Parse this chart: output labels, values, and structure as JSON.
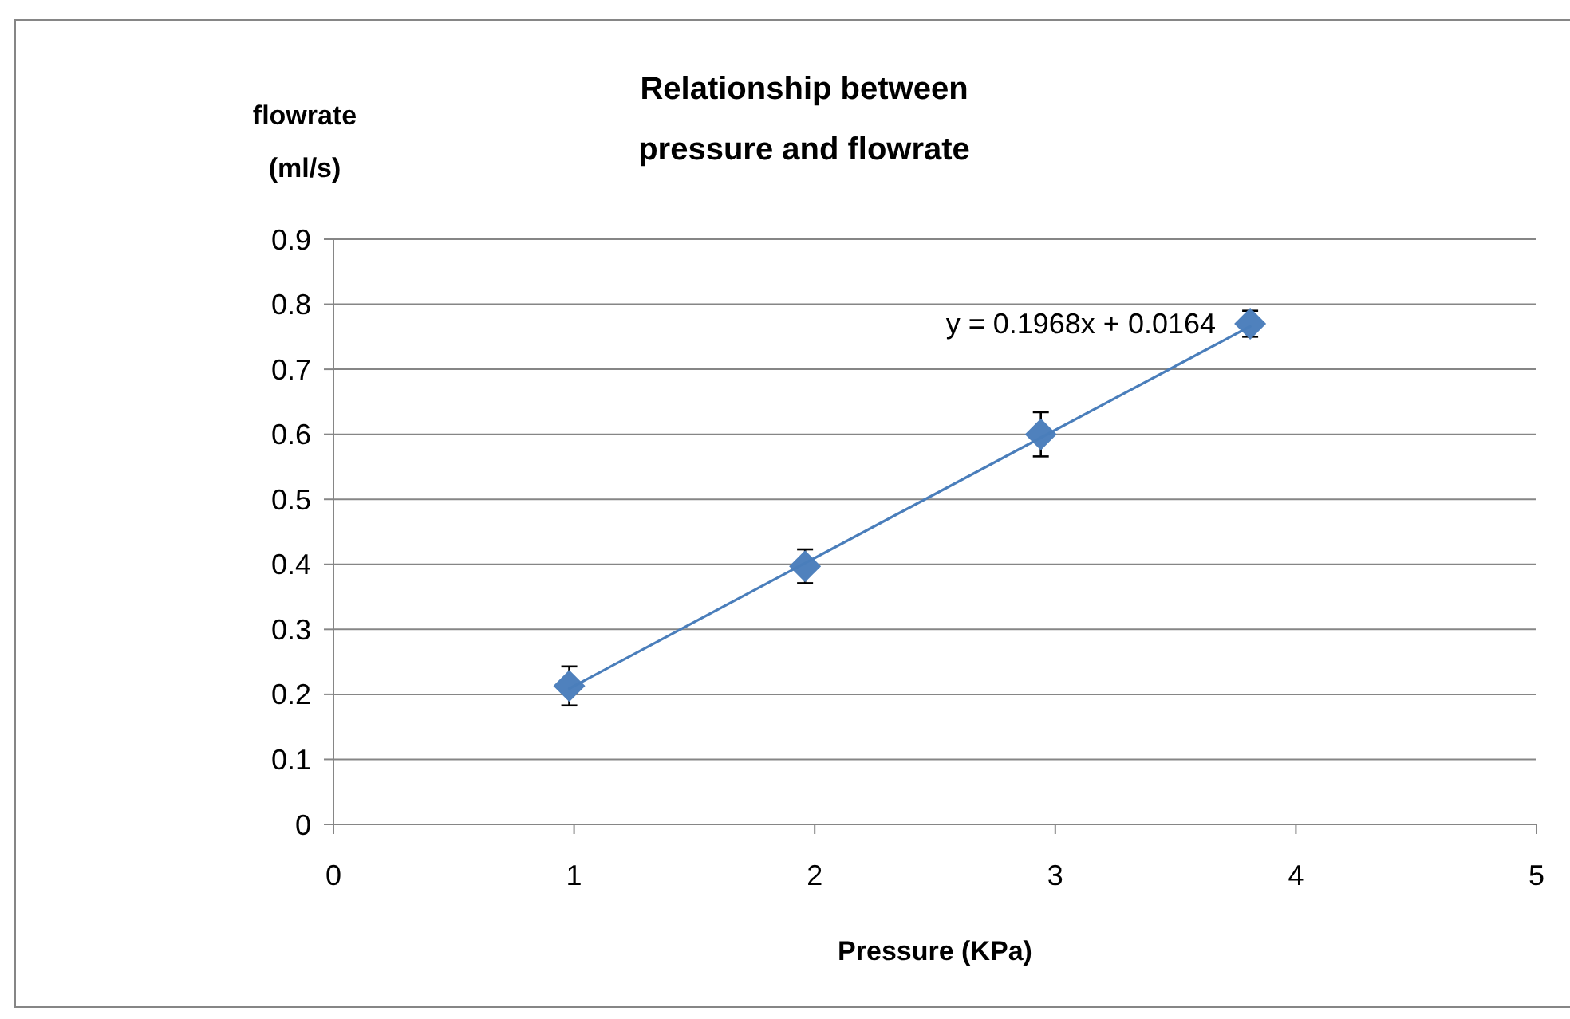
{
  "chart_data": {
    "type": "scatter",
    "title": "Relationship between pressure and flowrate",
    "xlabel": "Pressure (KPa)",
    "ylabel": "flowrate (ml/s)",
    "xlim": [
      0,
      5
    ],
    "xticks": [
      0,
      1,
      2,
      3,
      4,
      5
    ],
    "ylim": [
      0,
      0.9
    ],
    "yticks": [
      0,
      0.1,
      0.2,
      0.3,
      0.4,
      0.5,
      0.6,
      0.7,
      0.8,
      0.9
    ],
    "grid": "y",
    "marker": "diamond",
    "annotations": [
      "y = 0.1968x + 0.0164"
    ],
    "series": [
      {
        "color": "#4f81bd",
        "x": [
          0.98,
          1.96,
          2.94,
          3.81
        ],
        "values": [
          0.213,
          0.397,
          0.6,
          0.77
        ],
        "errors": [
          0.03,
          0.026,
          0.034,
          0.02
        ]
      },
      {
        "type": "line",
        "color": "#4a7ebb",
        "x": [
          0.98,
          3.81
        ],
        "values": [
          0.209,
          0.766
        ],
        "marker": "none"
      }
    ]
  }
}
